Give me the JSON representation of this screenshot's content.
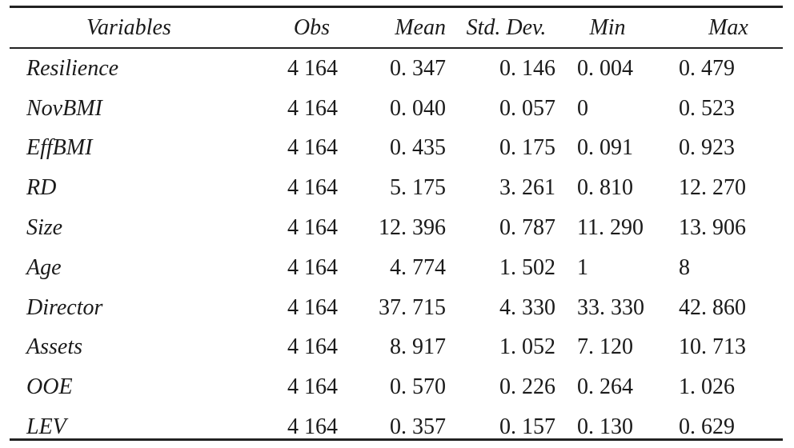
{
  "table": {
    "headers": {
      "variables": "Variables",
      "obs": "Obs",
      "mean": "Mean",
      "std_dev": "Std.  Dev.",
      "min": "Min",
      "max": "Max"
    },
    "rows": [
      {
        "variable": "Resilience",
        "obs": "4 164",
        "mean": "0. 347",
        "std_dev": "0. 146",
        "min": "0. 004",
        "max": "0. 479"
      },
      {
        "variable": "NovBMI",
        "obs": "4 164",
        "mean": "0. 040",
        "std_dev": "0. 057",
        "min": "0",
        "max": "0. 523"
      },
      {
        "variable": "EffBMI",
        "obs": "4 164",
        "mean": "0. 435",
        "std_dev": "0. 175",
        "min": "0. 091",
        "max": "0. 923"
      },
      {
        "variable": "RD",
        "obs": "4 164",
        "mean": "5. 175",
        "std_dev": "3. 261",
        "min": "0. 810",
        "max": "12. 270"
      },
      {
        "variable": "Size",
        "obs": "4 164",
        "mean": "12. 396",
        "std_dev": "0. 787",
        "min": "11. 290",
        "max": "13. 906"
      },
      {
        "variable": "Age",
        "obs": "4 164",
        "mean": "4. 774",
        "std_dev": "1. 502",
        "min": "1",
        "max": "8"
      },
      {
        "variable": "Director",
        "obs": "4 164",
        "mean": "37. 715",
        "std_dev": "4. 330",
        "min": "33. 330",
        "max": "42. 860"
      },
      {
        "variable": "Assets",
        "obs": "4 164",
        "mean": "8. 917",
        "std_dev": "1. 052",
        "min": "7. 120",
        "max": "10. 713"
      },
      {
        "variable": "OOE",
        "obs": "4 164",
        "mean": "0. 570",
        "std_dev": "0. 226",
        "min": "0. 264",
        "max": "1. 026"
      },
      {
        "variable": "LEV",
        "obs": "4 164",
        "mean": "0. 357",
        "std_dev": "0. 157",
        "min": "0. 130",
        "max": "0. 629"
      }
    ]
  }
}
